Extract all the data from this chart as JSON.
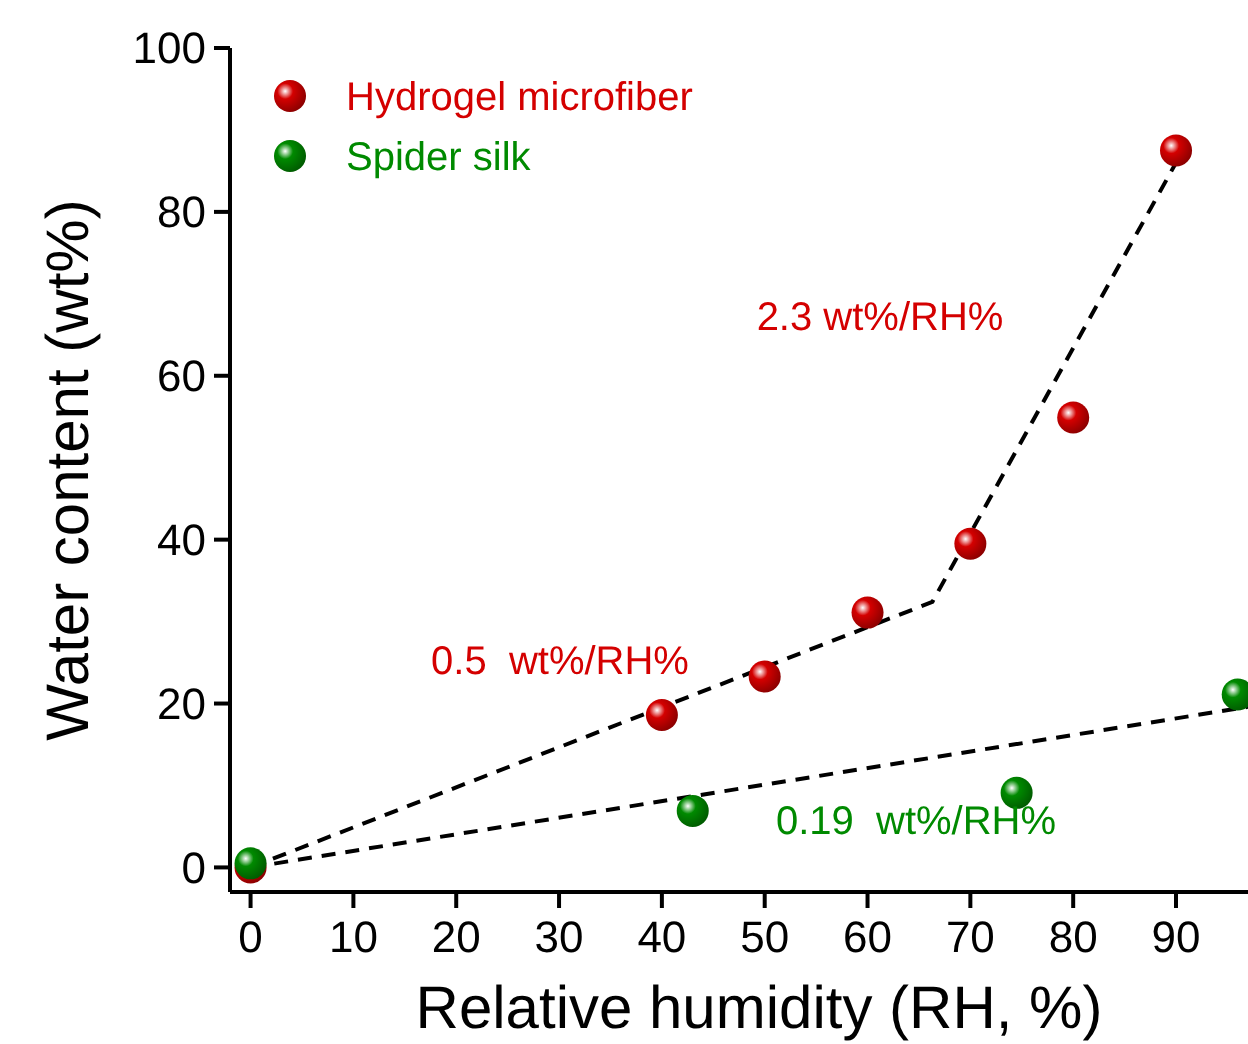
{
  "chart_data": {
    "type": "scatter",
    "xlabel": "Relative humidity (RH, %)",
    "ylabel": "Water content (wt%)",
    "xlim": [
      -2,
      97
    ],
    "ylim": [
      -3,
      100
    ],
    "xticks": [
      0,
      10,
      20,
      30,
      40,
      50,
      60,
      70,
      80,
      90
    ],
    "yticks": [
      0,
      20,
      40,
      60,
      80,
      100
    ],
    "grid": false,
    "legend": "top left",
    "series": [
      {
        "name": "Hydrogel microfiber",
        "color": "#d40000",
        "marker": "circle",
        "x": [
          0,
          40,
          50,
          60,
          70,
          80,
          90
        ],
        "values": [
          0,
          18.6,
          23.3,
          31.1,
          39.5,
          54.9,
          87.5
        ]
      },
      {
        "name": "Spider silk",
        "color": "#008a00",
        "marker": "circle",
        "x": [
          0,
          43,
          74.5,
          96
        ],
        "values": [
          0.5,
          6.9,
          9.1,
          21.1
        ]
      },
      {
        "type": "line",
        "color": "#000000",
        "line_style": "dashed",
        "x": [
          0,
          66.3,
          90
        ],
        "values": [
          0,
          32.4,
          86
        ]
      },
      {
        "type": "line",
        "color": "#000000",
        "line_style": "dashed",
        "x": [
          0,
          97
        ],
        "values": [
          0,
          19.6
        ]
      }
    ],
    "annotations": [
      "2.3 wt%/RH%",
      "0.5  wt%/RH%",
      "0.19  wt%/RH%"
    ]
  }
}
